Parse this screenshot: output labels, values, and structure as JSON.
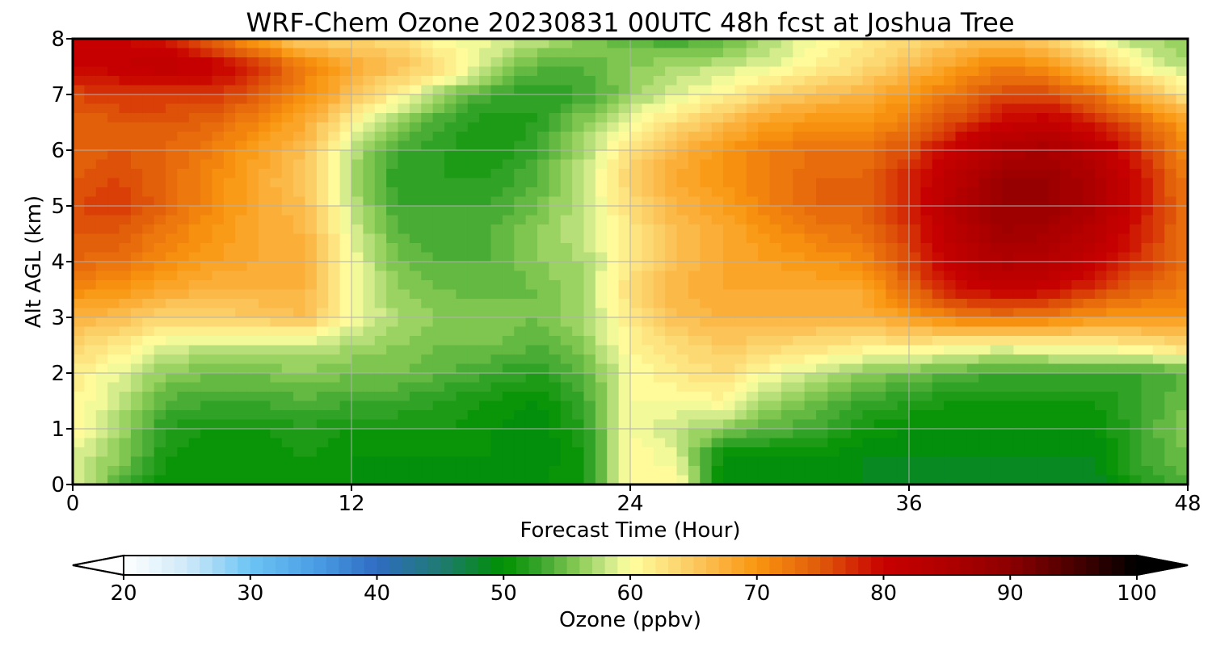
{
  "chart_data": {
    "type": "heatmap",
    "title": "WRF-Chem Ozone  20230831 00UTC 48h fcst at Joshua Tree",
    "xlabel": "Forecast Time (Hour)",
    "ylabel": "Alt AGL (km)",
    "xlim": [
      0,
      48
    ],
    "ylim": [
      0,
      8
    ],
    "xticks": [
      0,
      12,
      24,
      36,
      48
    ],
    "xtick_labels": [
      "0",
      "12",
      "24",
      "36",
      "48"
    ],
    "yticks": [
      0,
      1,
      2,
      3,
      4,
      5,
      6,
      7,
      8
    ],
    "ytick_labels": [
      "0",
      "1",
      "2",
      "3",
      "4",
      "5",
      "6",
      "7",
      "8"
    ],
    "grid": true,
    "x": [
      0,
      2,
      4,
      6,
      8,
      10,
      12,
      14,
      16,
      18,
      20,
      22,
      24,
      26,
      28,
      30,
      32,
      34,
      36,
      38,
      40,
      42,
      44,
      46,
      48
    ],
    "y": [
      0,
      0.5,
      1,
      1.5,
      2,
      2.5,
      3,
      3.5,
      4,
      4.5,
      5,
      5.5,
      6,
      6.5,
      7,
      7.5,
      8
    ],
    "z_units": "ppbv",
    "z": [
      [
        59,
        54,
        50,
        50,
        50,
        51,
        50,
        49,
        49,
        50,
        50,
        51,
        61,
        61,
        49,
        49,
        49,
        49,
        48,
        48,
        48,
        48,
        48,
        52,
        54
      ],
      [
        59,
        56,
        51,
        50,
        50,
        51,
        50,
        50,
        50,
        50,
        49,
        51,
        61,
        59,
        50,
        50,
        50,
        49,
        49,
        49,
        49,
        49,
        49,
        53,
        55
      ],
      [
        61,
        57,
        52,
        51,
        51,
        52,
        51,
        51,
        51,
        50,
        49,
        52,
        60,
        58,
        56,
        54,
        53,
        51,
        50,
        50,
        50,
        50,
        50,
        53,
        56
      ],
      [
        61,
        58,
        54,
        53,
        53,
        54,
        53,
        53,
        52,
        51,
        50,
        53,
        60,
        60,
        61,
        57,
        55,
        53,
        52,
        51,
        51,
        51,
        51,
        53,
        55
      ],
      [
        62,
        59,
        56,
        55,
        55,
        56,
        55,
        55,
        54,
        53,
        52,
        54,
        60,
        62,
        63,
        60,
        58,
        56,
        55,
        54,
        53,
        53,
        53,
        53,
        54
      ],
      [
        64,
        62,
        59,
        58,
        58,
        58,
        57,
        56,
        55,
        55,
        54,
        56,
        61,
        63,
        65,
        64,
        63,
        62,
        62,
        61,
        60,
        61,
        61,
        62,
        64
      ],
      [
        67,
        66,
        64,
        64,
        65,
        66,
        60,
        57,
        56,
        56,
        55,
        57,
        62,
        66,
        67,
        67,
        67,
        67,
        69,
        72,
        73,
        72,
        70,
        70,
        70
      ],
      [
        71,
        70,
        68,
        67,
        67,
        67,
        60,
        56,
        55,
        54,
        55,
        57,
        63,
        67,
        68,
        68,
        68,
        68,
        74,
        79,
        81,
        80,
        77,
        74,
        72
      ],
      [
        74,
        73,
        71,
        69,
        68,
        68,
        60,
        55,
        54,
        54,
        56,
        57,
        62,
        66,
        68,
        69,
        70,
        71,
        76,
        82,
        85,
        84,
        81,
        77,
        73
      ],
      [
        75,
        75,
        72,
        70,
        68,
        67,
        59,
        54,
        53,
        54,
        56,
        58,
        62,
        66,
        68,
        70,
        72,
        73,
        77,
        83,
        87,
        86,
        83,
        78,
        73
      ],
      [
        76,
        77,
        74,
        71,
        68,
        66,
        58,
        53,
        53,
        53,
        55,
        58,
        63,
        67,
        69,
        72,
        74,
        74,
        78,
        84,
        88,
        88,
        85,
        79,
        73
      ],
      [
        75,
        76,
        74,
        71,
        68,
        65,
        57,
        52,
        52,
        52,
        54,
        58,
        64,
        68,
        70,
        72,
        74,
        74,
        78,
        83,
        88,
        88,
        85,
        79,
        72
      ],
      [
        74,
        75,
        74,
        72,
        69,
        66,
        58,
        53,
        52,
        51,
        53,
        57,
        63,
        67,
        70,
        72,
        73,
        73,
        76,
        81,
        85,
        86,
        83,
        77,
        71
      ],
      [
        74,
        75,
        75,
        74,
        71,
        68,
        61,
        56,
        53,
        51,
        52,
        56,
        60,
        63,
        66,
        69,
        70,
        70,
        72,
        76,
        80,
        81,
        78,
        74,
        69
      ],
      [
        76,
        77,
        77,
        77,
        75,
        71,
        66,
        61,
        56,
        53,
        52,
        53,
        56,
        59,
        61,
        64,
        66,
        67,
        70,
        73,
        76,
        76,
        73,
        67,
        62
      ],
      [
        80,
        81,
        82,
        81,
        78,
        72,
        68,
        66,
        63,
        58,
        54,
        54,
        56,
        57,
        58,
        59,
        61,
        63,
        66,
        69,
        72,
        70,
        66,
        60,
        57
      ],
      [
        80,
        80,
        79,
        74,
        68,
        64,
        64,
        63,
        60,
        59,
        58,
        56,
        54,
        53,
        54,
        57,
        60,
        62,
        63,
        65,
        66,
        64,
        60,
        57,
        56
      ]
    ],
    "colorbar": {
      "label": "Ozone  (ppbv)",
      "min": 20,
      "max": 100,
      "extend": "both",
      "ticks": [
        20,
        30,
        40,
        50,
        60,
        70,
        80,
        90,
        100
      ],
      "tick_labels": [
        "20",
        "30",
        "40",
        "50",
        "60",
        "70",
        "80",
        "90",
        "100"
      ],
      "color_stops": [
        {
          "value": 20,
          "color": "#ffffff"
        },
        {
          "value": 25,
          "color": "#cfeaf8"
        },
        {
          "value": 30,
          "color": "#6cc4f3"
        },
        {
          "value": 35,
          "color": "#4b9fe6"
        },
        {
          "value": 40,
          "color": "#2f6cc2"
        },
        {
          "value": 45,
          "color": "#1f7a72"
        },
        {
          "value": 50,
          "color": "#009000"
        },
        {
          "value": 53,
          "color": "#3aa52e"
        },
        {
          "value": 56,
          "color": "#8ccd55"
        },
        {
          "value": 58,
          "color": "#c5e585"
        },
        {
          "value": 60,
          "color": "#ffffa0"
        },
        {
          "value": 65,
          "color": "#fcc860"
        },
        {
          "value": 70,
          "color": "#fa9610"
        },
        {
          "value": 75,
          "color": "#e05a0a"
        },
        {
          "value": 80,
          "color": "#c80000"
        },
        {
          "value": 85,
          "color": "#b00000"
        },
        {
          "value": 90,
          "color": "#8c0000"
        },
        {
          "value": 95,
          "color": "#4a0000"
        },
        {
          "value": 100,
          "color": "#000000"
        }
      ]
    }
  }
}
